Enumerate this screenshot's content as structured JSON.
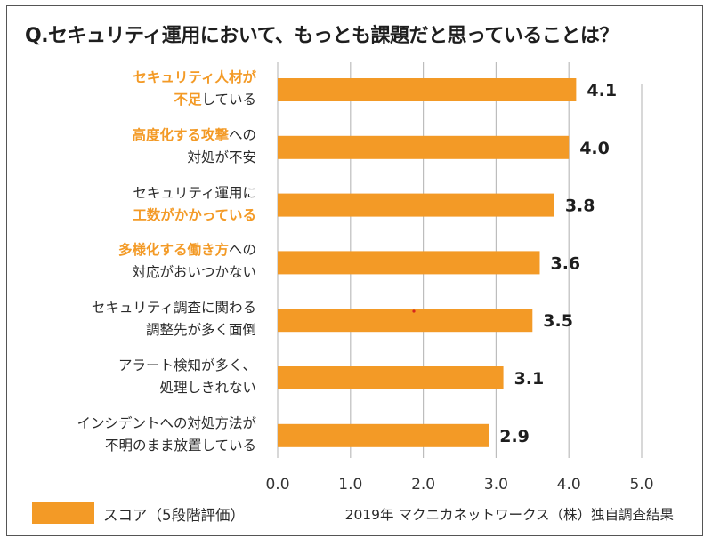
{
  "title": "Q.セキュリティ運用において、もっとも課題だと思っていることは？",
  "colors": {
    "bar": "#f39a26",
    "highlight": "#f39a26",
    "grid": "#bdbdbd",
    "text": "#222222"
  },
  "legend": {
    "label": "スコア（5段階評価）"
  },
  "source": "2019年 マクニカネットワークス（株）独自調査結果",
  "categories": [
    {
      "lines": [
        [
          {
            "t": "セキュリティ人材が",
            "hl": true
          }
        ],
        [
          {
            "t": "不足",
            "hl": true
          },
          {
            "t": "している",
            "hl": false
          }
        ]
      ]
    },
    {
      "lines": [
        [
          {
            "t": "高度化する攻撃",
            "hl": true
          },
          {
            "t": "への",
            "hl": false
          }
        ],
        [
          {
            "t": "対処が不安",
            "hl": false
          }
        ]
      ]
    },
    {
      "lines": [
        [
          {
            "t": "セキュリティ運用に",
            "hl": false
          }
        ],
        [
          {
            "t": "工数がかかっている",
            "hl": true
          }
        ]
      ]
    },
    {
      "lines": [
        [
          {
            "t": "多様化する働き方",
            "hl": true
          },
          {
            "t": "への",
            "hl": false
          }
        ],
        [
          {
            "t": "対応がおいつかない",
            "hl": false
          }
        ]
      ]
    },
    {
      "lines": [
        [
          {
            "t": "セキュリティ調査に関わる",
            "hl": false
          }
        ],
        [
          {
            "t": "調整先が多く面倒",
            "hl": false
          }
        ]
      ]
    },
    {
      "lines": [
        [
          {
            "t": "アラート検知が多く、",
            "hl": false
          }
        ],
        [
          {
            "t": "処理しきれない",
            "hl": false
          }
        ]
      ]
    },
    {
      "lines": [
        [
          {
            "t": "インシデントへの対処方法が",
            "hl": false
          }
        ],
        [
          {
            "t": "不明のまま放置している",
            "hl": false
          }
        ]
      ]
    }
  ],
  "chart_data": {
    "type": "bar",
    "orientation": "horizontal",
    "title": "Q.セキュリティ運用において、もっとも課題だと思っていることは？",
    "categories": [
      "セキュリティ人材が不足している",
      "高度化する攻撃への対処が不安",
      "セキュリティ運用に工数がかかっている",
      "多様化する働き方への対応がおいつかない",
      "セキュリティ調査に関わる調整先が多く面倒",
      "アラート検知が多く、処理しきれない",
      "インシデントへの対処方法が不明のまま放置している"
    ],
    "values": [
      4.1,
      4.0,
      3.8,
      3.6,
      3.5,
      3.1,
      2.9
    ],
    "value_labels": [
      "4.1",
      "4.0",
      "3.8",
      "3.6",
      "3.5",
      "3.1",
      "2.9"
    ],
    "series": [
      {
        "name": "スコア（5段階評価）",
        "values": [
          4.1,
          4.0,
          3.8,
          3.6,
          3.5,
          3.1,
          2.9
        ]
      }
    ],
    "xlim": [
      0,
      5
    ],
    "xticks": [
      0,
      1,
      2,
      3,
      4,
      5
    ],
    "xtick_labels": [
      "0.0",
      "1.0",
      "2.0",
      "3.0",
      "4.0",
      "5.0"
    ],
    "xlabel": "",
    "ylabel": "",
    "grid": true,
    "legend": "bottom-left",
    "annotation": "2019年 マクニカネットワークス（株）独自調査結果"
  }
}
